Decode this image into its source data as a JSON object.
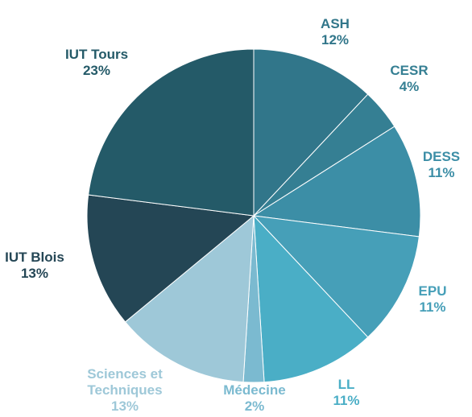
{
  "chart_data": {
    "type": "pie",
    "categories": [
      "ASH",
      "CESR",
      "DESS",
      "EPU",
      "LL",
      "Médecine",
      "Sciences et Techniques",
      "IUT Blois",
      "IUT Tours"
    ],
    "values": [
      12,
      4,
      11,
      11,
      11,
      2,
      13,
      13,
      23
    ],
    "value_labels": [
      "12%",
      "4%",
      "11%",
      "11%",
      "11%",
      "2%",
      "13%",
      "13%",
      "23%"
    ],
    "colors": [
      "#31768a",
      "#357f93",
      "#3c8ea6",
      "#469fb8",
      "#4aaec6",
      "#7bbad0",
      "#9ec8d8",
      "#244655",
      "#245a68"
    ]
  }
}
